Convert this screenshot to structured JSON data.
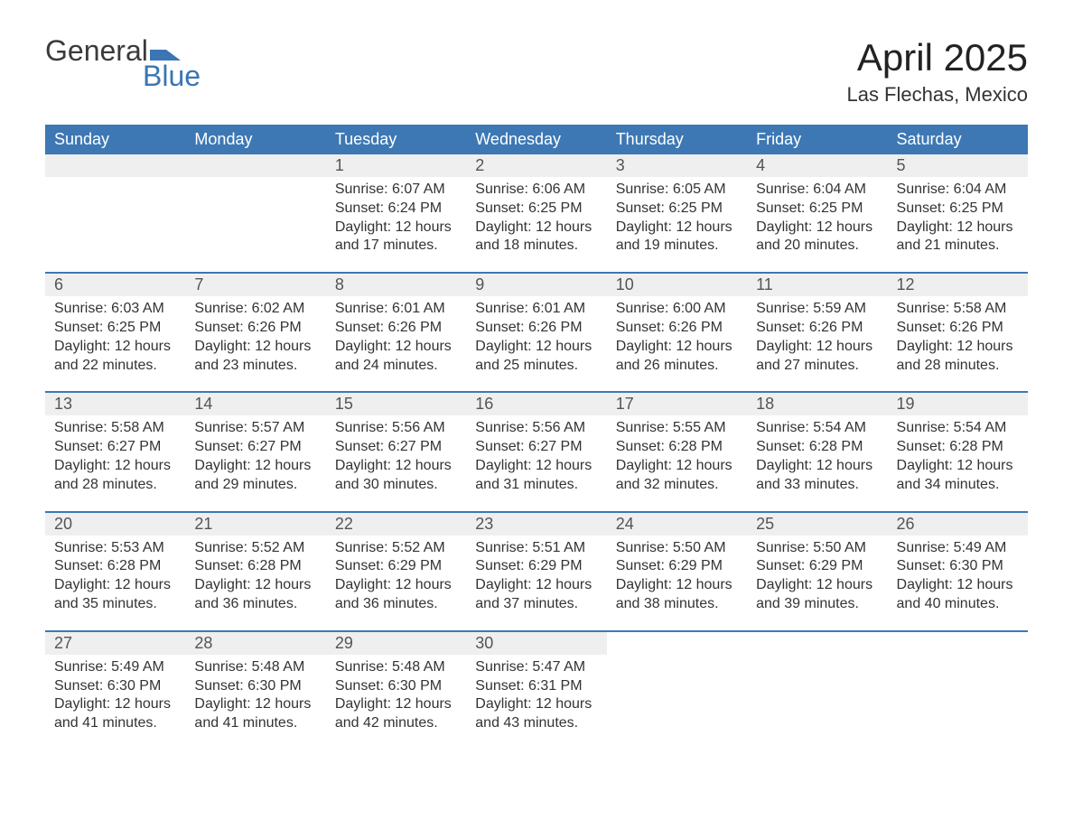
{
  "logo": {
    "word1": "General",
    "word2": "Blue"
  },
  "title": "April 2025",
  "subtitle": "Las Flechas, Mexico",
  "colors": {
    "header_bg": "#3d78b4",
    "header_fg": "#ffffff",
    "daynum_bg": "#efefef",
    "border_top": "#3d78b4",
    "logo_blue": "#3b75b3",
    "text": "#333333"
  },
  "weekdays": [
    "Sunday",
    "Monday",
    "Tuesday",
    "Wednesday",
    "Thursday",
    "Friday",
    "Saturday"
  ],
  "weeks": [
    [
      null,
      null,
      {
        "n": "1",
        "sr": "6:07 AM",
        "ss": "6:24 PM",
        "dl": "12 hours and 17 minutes."
      },
      {
        "n": "2",
        "sr": "6:06 AM",
        "ss": "6:25 PM",
        "dl": "12 hours and 18 minutes."
      },
      {
        "n": "3",
        "sr": "6:05 AM",
        "ss": "6:25 PM",
        "dl": "12 hours and 19 minutes."
      },
      {
        "n": "4",
        "sr": "6:04 AM",
        "ss": "6:25 PM",
        "dl": "12 hours and 20 minutes."
      },
      {
        "n": "5",
        "sr": "6:04 AM",
        "ss": "6:25 PM",
        "dl": "12 hours and 21 minutes."
      }
    ],
    [
      {
        "n": "6",
        "sr": "6:03 AM",
        "ss": "6:25 PM",
        "dl": "12 hours and 22 minutes."
      },
      {
        "n": "7",
        "sr": "6:02 AM",
        "ss": "6:26 PM",
        "dl": "12 hours and 23 minutes."
      },
      {
        "n": "8",
        "sr": "6:01 AM",
        "ss": "6:26 PM",
        "dl": "12 hours and 24 minutes."
      },
      {
        "n": "9",
        "sr": "6:01 AM",
        "ss": "6:26 PM",
        "dl": "12 hours and 25 minutes."
      },
      {
        "n": "10",
        "sr": "6:00 AM",
        "ss": "6:26 PM",
        "dl": "12 hours and 26 minutes."
      },
      {
        "n": "11",
        "sr": "5:59 AM",
        "ss": "6:26 PM",
        "dl": "12 hours and 27 minutes."
      },
      {
        "n": "12",
        "sr": "5:58 AM",
        "ss": "6:26 PM",
        "dl": "12 hours and 28 minutes."
      }
    ],
    [
      {
        "n": "13",
        "sr": "5:58 AM",
        "ss": "6:27 PM",
        "dl": "12 hours and 28 minutes."
      },
      {
        "n": "14",
        "sr": "5:57 AM",
        "ss": "6:27 PM",
        "dl": "12 hours and 29 minutes."
      },
      {
        "n": "15",
        "sr": "5:56 AM",
        "ss": "6:27 PM",
        "dl": "12 hours and 30 minutes."
      },
      {
        "n": "16",
        "sr": "5:56 AM",
        "ss": "6:27 PM",
        "dl": "12 hours and 31 minutes."
      },
      {
        "n": "17",
        "sr": "5:55 AM",
        "ss": "6:28 PM",
        "dl": "12 hours and 32 minutes."
      },
      {
        "n": "18",
        "sr": "5:54 AM",
        "ss": "6:28 PM",
        "dl": "12 hours and 33 minutes."
      },
      {
        "n": "19",
        "sr": "5:54 AM",
        "ss": "6:28 PM",
        "dl": "12 hours and 34 minutes."
      }
    ],
    [
      {
        "n": "20",
        "sr": "5:53 AM",
        "ss": "6:28 PM",
        "dl": "12 hours and 35 minutes."
      },
      {
        "n": "21",
        "sr": "5:52 AM",
        "ss": "6:28 PM",
        "dl": "12 hours and 36 minutes."
      },
      {
        "n": "22",
        "sr": "5:52 AM",
        "ss": "6:29 PM",
        "dl": "12 hours and 36 minutes."
      },
      {
        "n": "23",
        "sr": "5:51 AM",
        "ss": "6:29 PM",
        "dl": "12 hours and 37 minutes."
      },
      {
        "n": "24",
        "sr": "5:50 AM",
        "ss": "6:29 PM",
        "dl": "12 hours and 38 minutes."
      },
      {
        "n": "25",
        "sr": "5:50 AM",
        "ss": "6:29 PM",
        "dl": "12 hours and 39 minutes."
      },
      {
        "n": "26",
        "sr": "5:49 AM",
        "ss": "6:30 PM",
        "dl": "12 hours and 40 minutes."
      }
    ],
    [
      {
        "n": "27",
        "sr": "5:49 AM",
        "ss": "6:30 PM",
        "dl": "12 hours and 41 minutes."
      },
      {
        "n": "28",
        "sr": "5:48 AM",
        "ss": "6:30 PM",
        "dl": "12 hours and 41 minutes."
      },
      {
        "n": "29",
        "sr": "5:48 AM",
        "ss": "6:30 PM",
        "dl": "12 hours and 42 minutes."
      },
      {
        "n": "30",
        "sr": "5:47 AM",
        "ss": "6:31 PM",
        "dl": "12 hours and 43 minutes."
      },
      null,
      null,
      null
    ]
  ],
  "labels": {
    "sunrise": "Sunrise: ",
    "sunset": "Sunset: ",
    "daylight": "Daylight: "
  }
}
